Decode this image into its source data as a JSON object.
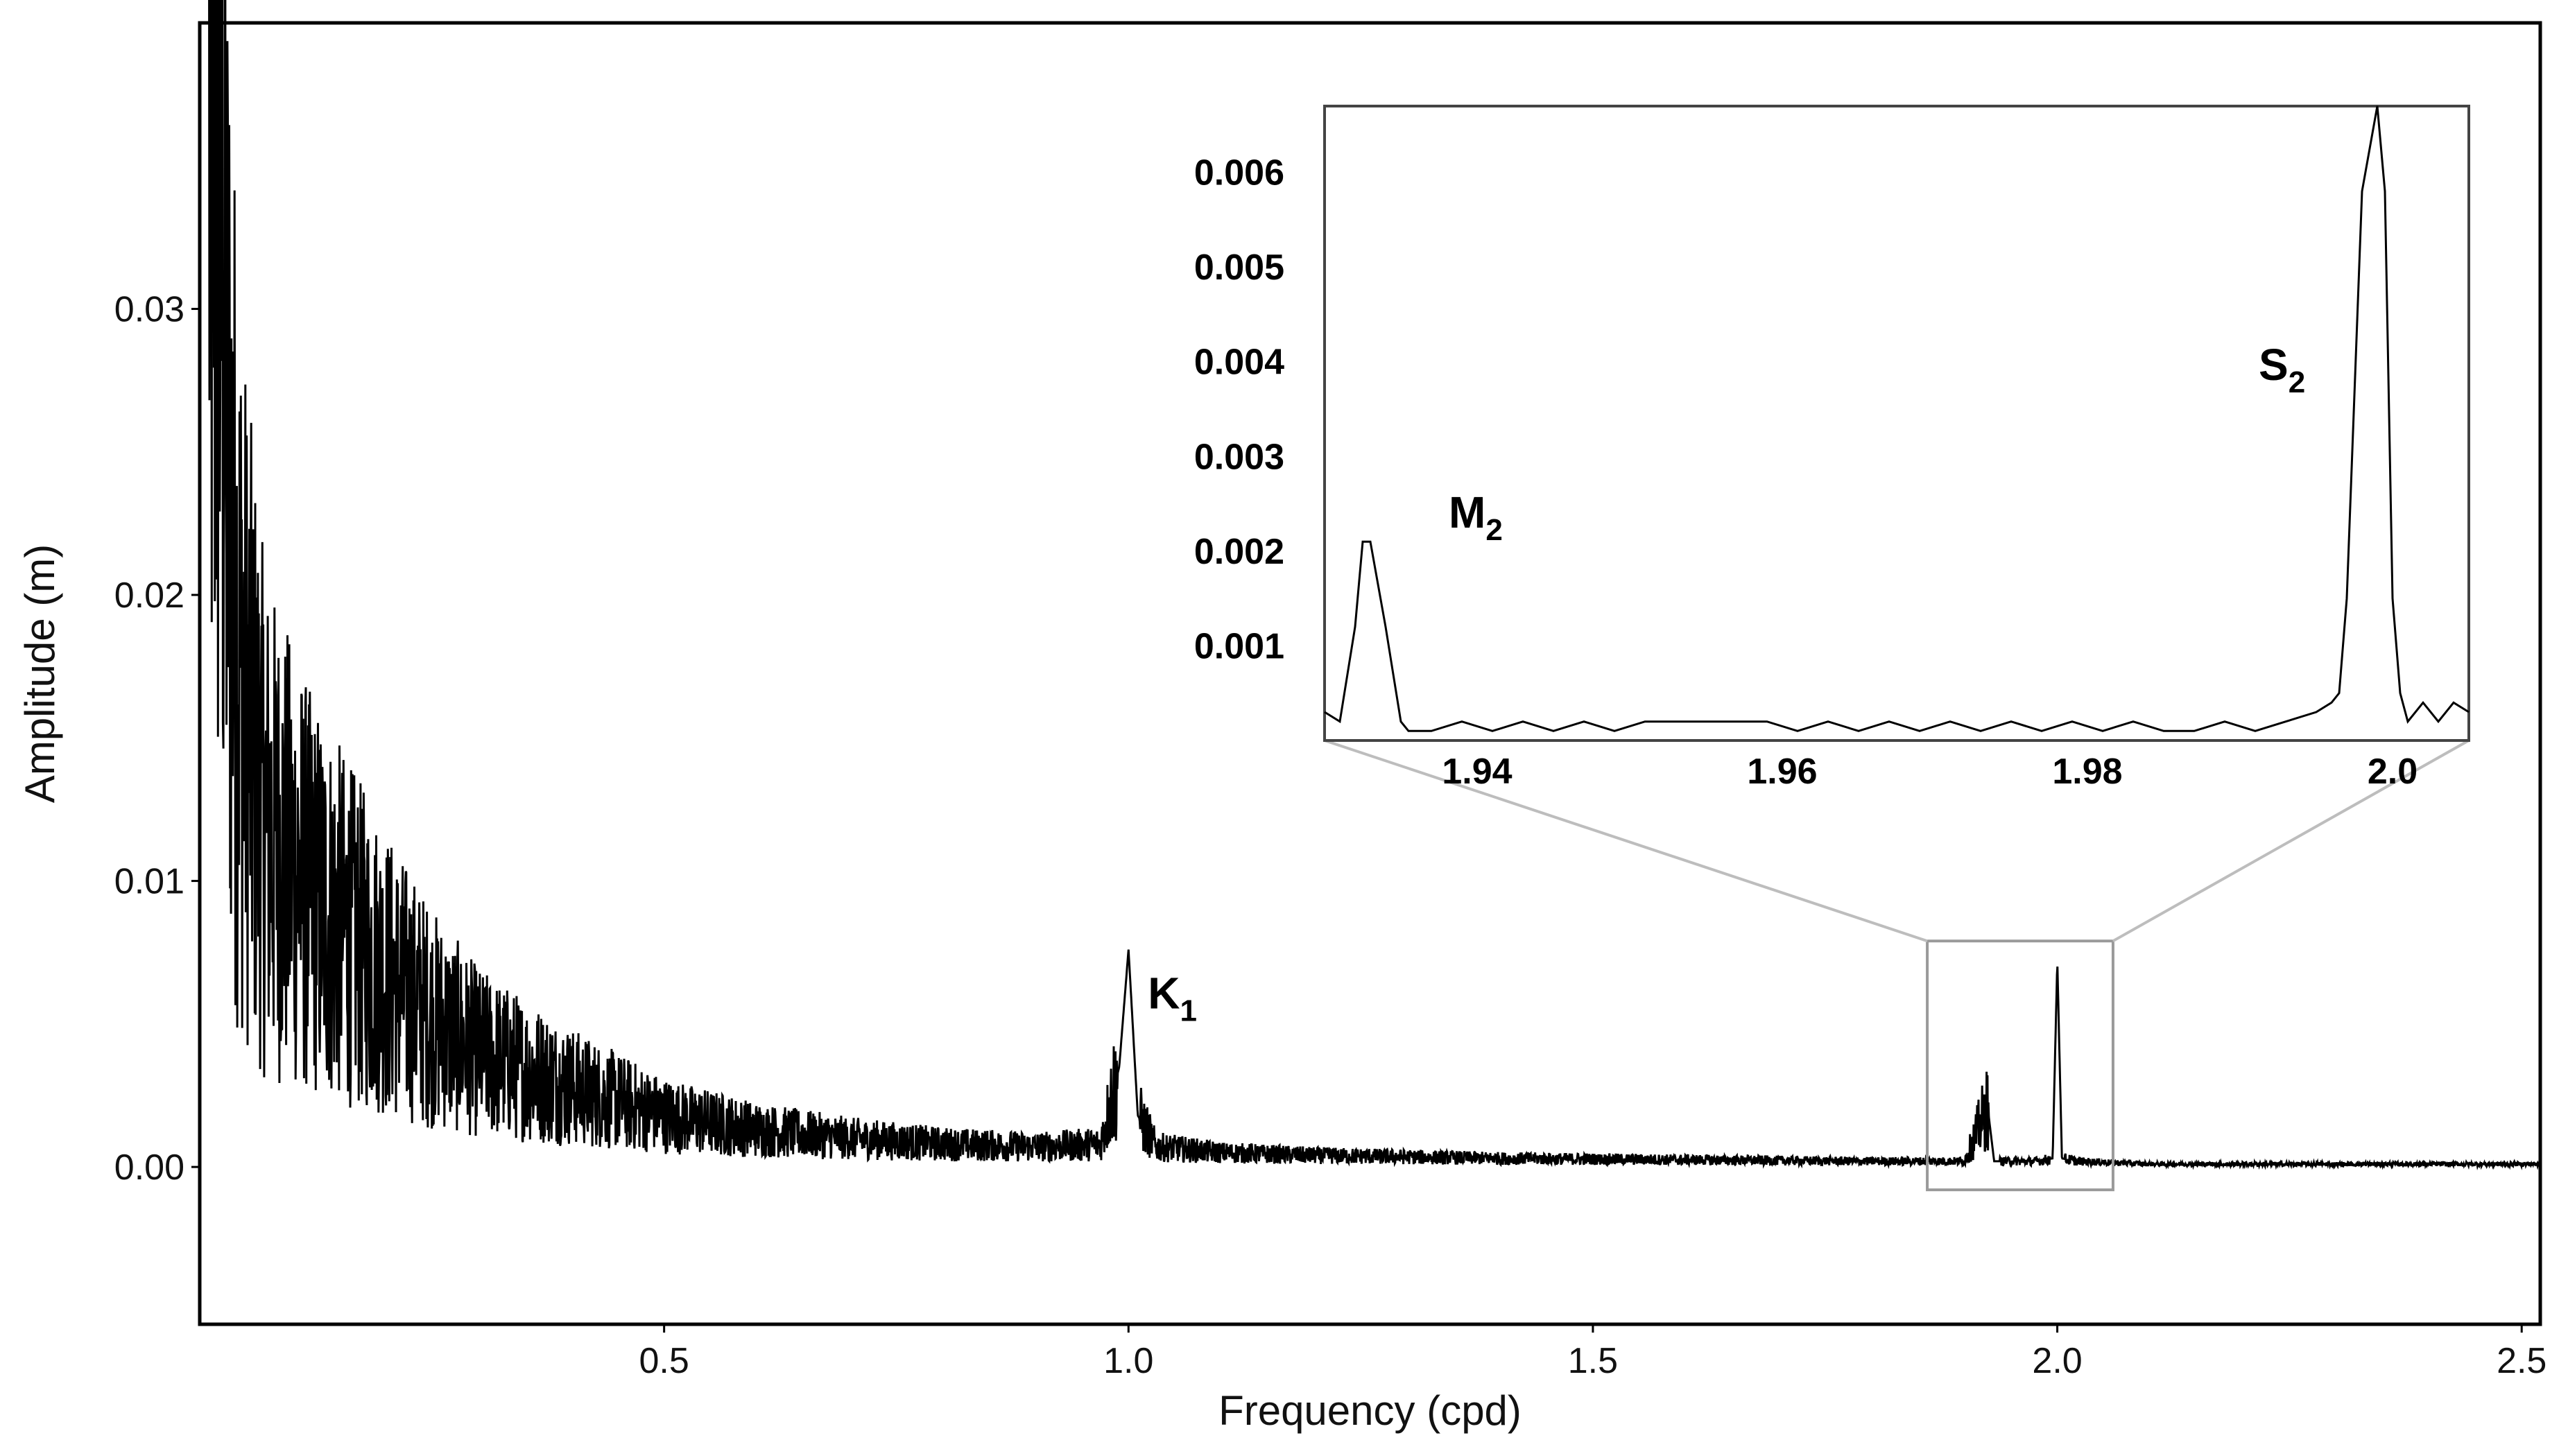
{
  "chart_data": {
    "type": "line",
    "main": {
      "xlabel": "Frequency (cpd)",
      "ylabel": "Amplitude (m)",
      "xlim": [
        0.0,
        2.52
      ],
      "ylim": [
        -0.0055,
        0.04
      ],
      "xticks": [
        0.5,
        1.0,
        1.5,
        2.0,
        2.5
      ],
      "xtick_labels": [
        "0.5",
        "1.0",
        "1.5",
        "2.0",
        "2.5"
      ],
      "yticks": [
        0.0,
        0.01,
        0.02,
        0.03
      ],
      "ytick_labels": [
        "0.00",
        "0.01",
        "0.02",
        "0.03"
      ],
      "line_color": "#000000",
      "series": [
        {
          "x": [
            0.01,
            0.02,
            0.03,
            0.04,
            0.05,
            0.06,
            0.07,
            0.08,
            0.1,
            0.12,
            0.15,
            0.2,
            0.25,
            0.3,
            0.4,
            0.5,
            0.6,
            0.7,
            0.8,
            0.9,
            0.97,
            0.99,
            1.0,
            1.01,
            1.03,
            1.1,
            1.2,
            1.4,
            1.6,
            1.8,
            1.9,
            1.925,
            1.932,
            1.94,
            1.98,
            1.995,
            2.0,
            2.005,
            2.02,
            2.1,
            2.3,
            2.52
          ],
          "y": [
            0.038,
            0.036,
            0.025,
            0.019,
            0.016,
            0.014,
            0.012,
            0.0115,
            0.0105,
            0.0095,
            0.0085,
            0.0068,
            0.0052,
            0.004,
            0.0028,
            0.0018,
            0.0013,
            0.001,
            0.0008,
            0.0007,
            0.0008,
            0.0035,
            0.0076,
            0.0018,
            0.0007,
            0.0005,
            0.0004,
            0.0003,
            0.00025,
            0.0002,
            0.0002,
            0.0021,
            0.0002,
            0.0002,
            0.0002,
            0.0003,
            0.0072,
            0.0003,
            0.0002,
            0.0001,
            0.0001,
            0.0001
          ]
        }
      ],
      "annotations": [
        {
          "label": "K",
          "subscript": "1",
          "x": 1.0,
          "y": 0.0076
        }
      ]
    },
    "inset": {
      "xlim": [
        1.93,
        2.005
      ],
      "ylim": [
        0.0,
        0.0067
      ],
      "xticks": [
        1.94,
        1.96,
        1.98,
        2.0
      ],
      "xtick_labels": [
        "1.94",
        "1.96",
        "1.98",
        "2.0"
      ],
      "yticks": [
        0.001,
        0.002,
        0.003,
        0.004,
        0.005,
        0.006
      ],
      "ytick_labels": [
        "0.001",
        "0.002",
        "0.003",
        "0.004",
        "0.005",
        "0.006"
      ],
      "line_color": "#000000",
      "zoom_box": {
        "x": [
          1.86,
          2.06
        ],
        "y": [
          -0.0008,
          0.0079
        ]
      },
      "series": [
        {
          "x": [
            1.93,
            1.931,
            1.932,
            1.9325,
            1.933,
            1.934,
            1.935,
            1.9355,
            1.937,
            1.939,
            1.941,
            1.943,
            1.945,
            1.947,
            1.949,
            1.951,
            1.953,
            1.955,
            1.957,
            1.959,
            1.961,
            1.963,
            1.965,
            1.967,
            1.969,
            1.971,
            1.973,
            1.975,
            1.977,
            1.979,
            1.981,
            1.983,
            1.985,
            1.987,
            1.989,
            1.991,
            1.993,
            1.995,
            1.996,
            1.9965,
            1.997,
            1.998,
            1.999,
            1.9995,
            2.0,
            2.0005,
            2.001,
            2.002,
            2.003,
            2.004,
            2.005
          ],
          "y": [
            0.0003,
            0.0002,
            0.0012,
            0.0021,
            0.0021,
            0.0012,
            0.0002,
            0.0001,
            0.0001,
            0.0002,
            0.0001,
            0.0002,
            0.0001,
            0.0002,
            0.0001,
            0.0002,
            0.0002,
            0.0002,
            0.0002,
            0.0002,
            0.0001,
            0.0002,
            0.0001,
            0.0002,
            0.0001,
            0.0002,
            0.0001,
            0.0002,
            0.0001,
            0.0002,
            0.0001,
            0.0002,
            0.0001,
            0.0001,
            0.0002,
            0.0001,
            0.0002,
            0.0003,
            0.0004,
            0.0005,
            0.0015,
            0.0058,
            0.0067,
            0.0058,
            0.0015,
            0.0005,
            0.0002,
            0.0004,
            0.0002,
            0.0004,
            0.0003
          ]
        }
      ],
      "annotations": [
        {
          "label": "M",
          "subscript": "2",
          "x": 1.9345,
          "y": 0.0021
        },
        {
          "label": "S",
          "subscript": "2",
          "x": 1.9985,
          "y": 0.0067
        }
      ]
    }
  }
}
